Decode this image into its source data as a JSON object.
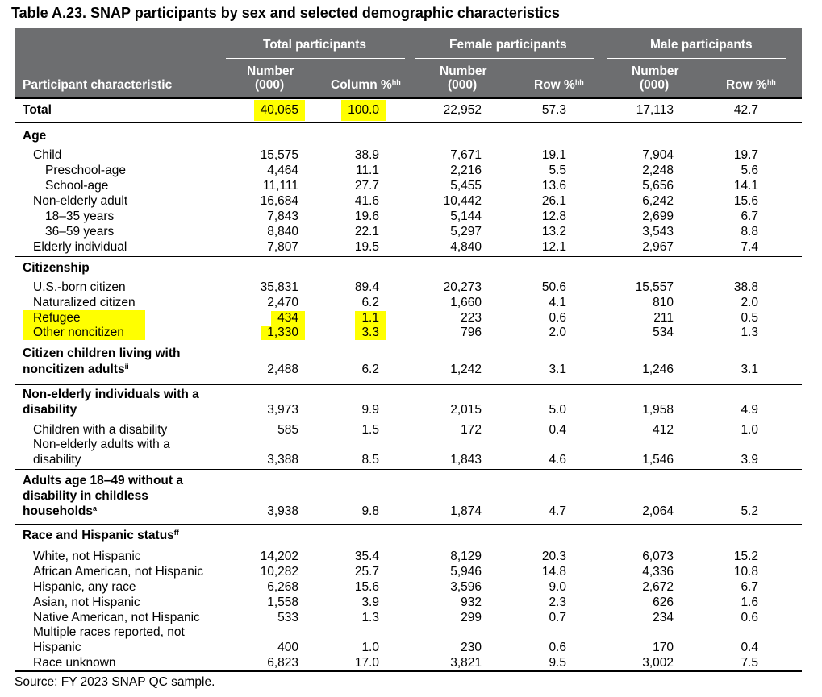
{
  "title": "Table A.23. SNAP participants by sex and selected demographic characteristics",
  "header": {
    "row_label": "Participant characteristic",
    "groups": [
      "Total participants",
      "Female participants",
      "Male participants"
    ],
    "number_label_line1": "Number",
    "number_label_line2": "(000)",
    "column_pct": "Column %",
    "row_pct": "Row %",
    "pct_note": "hh"
  },
  "total_row": {
    "label": "Total",
    "values": [
      "40,065",
      "100.0",
      "22,952",
      "57.3",
      "17,113",
      "42.7"
    ]
  },
  "sections": {
    "age": {
      "heading": "Age",
      "rows": [
        {
          "label": "Child",
          "values": [
            "15,575",
            "38.9",
            "7,671",
            "19.1",
            "7,904",
            "19.7"
          ]
        },
        {
          "label": "Preschool-age",
          "values": [
            "4,464",
            "11.1",
            "2,216",
            "5.5",
            "2,248",
            "5.6"
          ]
        },
        {
          "label": "School-age",
          "values": [
            "11,111",
            "27.7",
            "5,455",
            "13.6",
            "5,656",
            "14.1"
          ]
        },
        {
          "label": "Non-elderly adult",
          "values": [
            "16,684",
            "41.6",
            "10,442",
            "26.1",
            "6,242",
            "15.6"
          ]
        },
        {
          "label": "18–35 years",
          "values": [
            "7,843",
            "19.6",
            "5,144",
            "12.8",
            "2,699",
            "6.7"
          ]
        },
        {
          "label": "36–59 years",
          "values": [
            "8,840",
            "22.1",
            "5,297",
            "13.2",
            "3,543",
            "8.8"
          ]
        },
        {
          "label": "Elderly individual",
          "values": [
            "7,807",
            "19.5",
            "4,840",
            "12.1",
            "2,967",
            "7.4"
          ]
        }
      ]
    },
    "citizenship": {
      "heading": "Citizenship",
      "rows": [
        {
          "label": "U.S.-born citizen",
          "values": [
            "35,831",
            "89.4",
            "20,273",
            "50.6",
            "15,557",
            "38.8"
          ]
        },
        {
          "label": "Naturalized citizen",
          "values": [
            "2,470",
            "6.2",
            "1,660",
            "4.1",
            "810",
            "2.0"
          ]
        },
        {
          "label": "Refugee",
          "values": [
            "434",
            "1.1",
            "223",
            "0.6",
            "211",
            "0.5"
          ]
        },
        {
          "label": "Other noncitizen",
          "values": [
            "1,330",
            "3.3",
            "796",
            "2.0",
            "534",
            "1.3"
          ]
        }
      ]
    },
    "citizen_children": {
      "heading_line1": "Citizen children living with",
      "heading_line2": "noncitizen adults",
      "note": "ii",
      "values": [
        "2,488",
        "6.2",
        "1,242",
        "3.1",
        "1,246",
        "3.1"
      ]
    },
    "disability": {
      "heading_line1": "Non-elderly individuals with a",
      "heading_line2": "disability",
      "values": [
        "3,973",
        "9.9",
        "2,015",
        "5.0",
        "1,958",
        "4.9"
      ],
      "rows": [
        {
          "label": "Children with a disability",
          "values": [
            "585",
            "1.5",
            "172",
            "0.4",
            "412",
            "1.0"
          ]
        },
        {
          "label_line1": "Non-elderly adults with a",
          "label_line2": "disability",
          "values": [
            "3,388",
            "8.5",
            "1,843",
            "4.6",
            "1,546",
            "3.9"
          ]
        }
      ]
    },
    "abawd": {
      "heading_line1": "Adults age 18–49 without a",
      "heading_line2": "disability in childless",
      "heading_line3": "households",
      "note": "a",
      "values": [
        "3,938",
        "9.8",
        "1,874",
        "4.7",
        "2,064",
        "5.2"
      ]
    },
    "race": {
      "heading": "Race and Hispanic status",
      "note": "ff",
      "rows": [
        {
          "label": "White, not Hispanic",
          "values": [
            "14,202",
            "35.4",
            "8,129",
            "20.3",
            "6,073",
            "15.2"
          ]
        },
        {
          "label": "African American, not Hispanic",
          "values": [
            "10,282",
            "25.7",
            "5,946",
            "14.8",
            "4,336",
            "10.8"
          ]
        },
        {
          "label": "Hispanic, any race",
          "values": [
            "6,268",
            "15.6",
            "3,596",
            "9.0",
            "2,672",
            "6.7"
          ]
        },
        {
          "label": "Asian, not Hispanic",
          "values": [
            "1,558",
            "3.9",
            "932",
            "2.3",
            "626",
            "1.6"
          ]
        },
        {
          "label": "Native American, not Hispanic",
          "values": [
            "533",
            "1.3",
            "299",
            "0.7",
            "234",
            "0.6"
          ]
        },
        {
          "label_line1": "Multiple races reported, not",
          "label_line2": "Hispanic",
          "values": [
            "400",
            "1.0",
            "230",
            "0.6",
            "170",
            "0.4"
          ]
        },
        {
          "label": "Race unknown",
          "values": [
            "6,823",
            "17.0",
            "3,821",
            "9.5",
            "3,002",
            "7.5"
          ]
        }
      ]
    }
  },
  "source": "Source: FY 2023 SNAP QC sample.",
  "colors": {
    "header_bg": "#6d6e70",
    "highlight": "#ffff00"
  }
}
